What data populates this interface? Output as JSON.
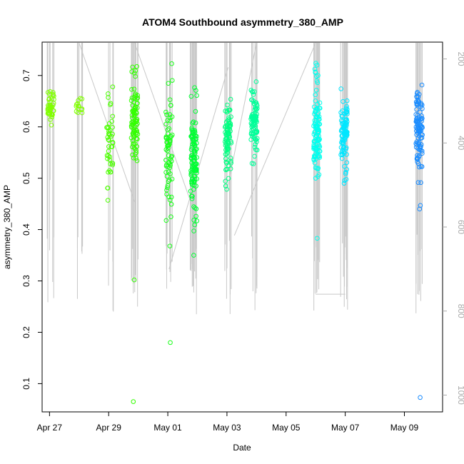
{
  "chart_data": {
    "type": "scatter",
    "title": "ATOM4 Southbound asymmetry_380_AMP",
    "xlabel": "Date",
    "ylabel": "asymmetry_380_AMP",
    "xlim": [
      "2023-04-26T18:00",
      "2023-05-10T07:00"
    ],
    "ylim": [
      0.045,
      0.765
    ],
    "y2lim": [
      1040,
      160
    ],
    "xticks": [
      {
        "date": "2023-04-27",
        "label": "Apr 27"
      },
      {
        "date": "2023-04-29",
        "label": "Apr 29"
      },
      {
        "date": "2023-05-01",
        "label": "May 01"
      },
      {
        "date": "2023-05-03",
        "label": "May 03"
      },
      {
        "date": "2023-05-05",
        "label": "May 05"
      },
      {
        "date": "2023-05-07",
        "label": "May 07"
      },
      {
        "date": "2023-05-09",
        "label": "May 09"
      }
    ],
    "yticks": [
      0.1,
      0.2,
      0.3,
      0.4,
      0.5,
      0.6,
      0.7
    ],
    "y2ticks": [
      200,
      400,
      600,
      800,
      1000
    ],
    "grid": false,
    "legend": "none",
    "marker": "open-circle",
    "line_color": "#c8c8c8",
    "clusters": [
      {
        "date": "2023-04-27T01:00",
        "color": "#80ff00",
        "n": 45,
        "core": [
          0.6,
          0.68
        ],
        "range": [
          0.57,
          0.7
        ],
        "outliers": []
      },
      {
        "date": "2023-04-28T00:00",
        "color": "#80ff00",
        "n": 14,
        "core": [
          0.62,
          0.665
        ],
        "range": [
          0.615,
          0.67
        ],
        "outliers": []
      },
      {
        "date": "2023-04-29T01:00",
        "color": "#4cff00",
        "n": 45,
        "core": [
          0.45,
          0.69
        ],
        "range": [
          0.44,
          0.69
        ],
        "outliers": []
      },
      {
        "date": "2023-04-29T21:00",
        "color": "#33ff00",
        "n": 90,
        "core": [
          0.53,
          0.7
        ],
        "range": [
          0.53,
          0.72
        ],
        "outliers": [
          0.302,
          0.065
        ]
      },
      {
        "date": "2023-05-01T01:00",
        "color": "#19ff19",
        "n": 70,
        "core": [
          0.41,
          0.7
        ],
        "range": [
          0.41,
          0.74
        ],
        "outliers": [
          0.368,
          0.18
        ]
      },
      {
        "date": "2023-05-01T21:00",
        "color": "#00ff33",
        "n": 110,
        "core": [
          0.4,
          0.68
        ],
        "range": [
          0.385,
          0.68
        ],
        "outliers": [
          0.35
        ]
      },
      {
        "date": "2023-05-03T01:00",
        "color": "#00ff80",
        "n": 80,
        "core": [
          0.48,
          0.67
        ],
        "range": [
          0.475,
          0.67
        ],
        "outliers": []
      },
      {
        "date": "2023-05-03T22:00",
        "color": "#00ff99",
        "n": 90,
        "core": [
          0.52,
          0.7
        ],
        "range": [
          0.52,
          0.7
        ],
        "outliers": []
      },
      {
        "date": "2023-05-06T01:00",
        "color": "#00ffee",
        "n": 110,
        "core": [
          0.48,
          0.67
        ],
        "range": [
          0.48,
          0.73
        ],
        "outliers": [
          0.383
        ]
      },
      {
        "date": "2023-05-06T23:00",
        "color": "#00e6ff",
        "n": 100,
        "core": [
          0.49,
          0.68
        ],
        "range": [
          0.49,
          0.685
        ],
        "outliers": []
      },
      {
        "date": "2023-05-09T12:00",
        "color": "#1a8cff",
        "n": 100,
        "core": [
          0.49,
          0.7
        ],
        "range": [
          0.49,
          0.735
        ],
        "outliers": [
          0.447,
          0.44,
          0.073
        ]
      }
    ],
    "profile_segments": [
      {
        "x": "2023-04-27T00:30",
        "y2": 160
      },
      {
        "x": "2023-04-27T00:30",
        "y2": 488
      },
      {
        "x": "2023-04-28T00:00",
        "y2": 488
      },
      {
        "x": "2023-04-28T00:00",
        "y2": 160
      },
      {
        "x": "2023-04-28T00:00",
        "y2": 160
      },
      {
        "x": "2023-04-29T21:00",
        "y2": 540
      },
      {
        "x": "2023-04-29T21:00",
        "y2": 160
      },
      {
        "x": "2023-05-01T21:00",
        "y2": 560
      },
      {
        "x": "2023-05-01T01:00",
        "y2": 700
      },
      {
        "x": "2023-05-03T01:00",
        "y2": 220
      },
      {
        "x": "2023-05-03T01:00",
        "y2": 500
      },
      {
        "x": "2023-05-04T00:00",
        "y2": 160
      },
      {
        "x": "2023-05-03T06:00",
        "y2": 620
      },
      {
        "x": "2023-05-06T00:00",
        "y2": 160
      },
      {
        "x": "2023-05-06T00:00",
        "y2": 760
      },
      {
        "x": "2023-05-07T00:00",
        "y2": 760
      }
    ]
  }
}
